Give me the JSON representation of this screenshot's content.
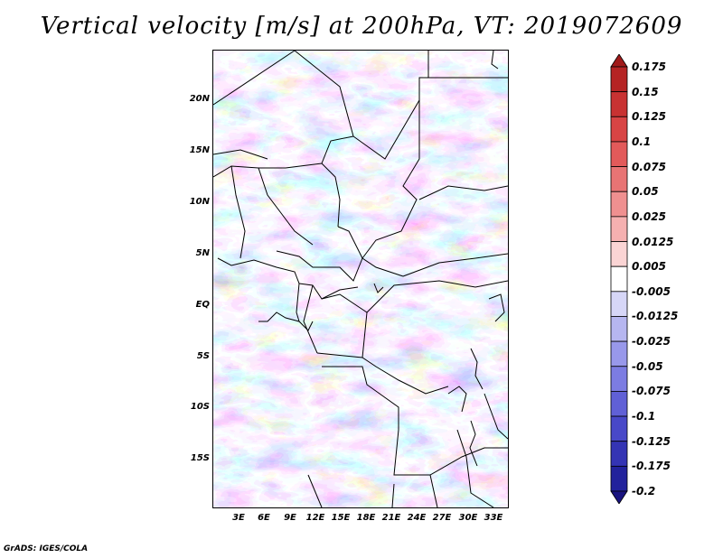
{
  "title": "Vertical velocity [m/s] at 200hPa, VT: 2019072609",
  "credit": "GrADS: IGES/COLA",
  "map": {
    "variable": "Vertical velocity",
    "units": "m/s",
    "level": "200hPa",
    "valid_time": "2019072609",
    "lat_labels": [
      "20N",
      "15N",
      "10N",
      "5N",
      "EQ",
      "5S",
      "10S",
      "15S"
    ],
    "lon_labels": [
      "3E",
      "6E",
      "9E",
      "12E",
      "15E",
      "18E",
      "21E",
      "24E",
      "27E",
      "30E",
      "33E"
    ]
  },
  "colorbar": {
    "labels": [
      "0.175",
      "0.15",
      "0.125",
      "0.1",
      "0.075",
      "0.05",
      "0.025",
      "0.0125",
      "0.005",
      "-0.005",
      "-0.0125",
      "-0.025",
      "-0.05",
      "-0.075",
      "-0.1",
      "-0.125",
      "-0.175",
      "-0.2"
    ],
    "colors": [
      "#a01a1a",
      "#b52424",
      "#c83232",
      "#d84444",
      "#e25a5a",
      "#e87474",
      "#ef9090",
      "#f5b0b0",
      "#fad4d4",
      "#ffffff",
      "#d6d6f7",
      "#b6b6f0",
      "#9898ea",
      "#7c7ce2",
      "#6060d6",
      "#4848c8",
      "#3434b4",
      "#22229c",
      "#1a1480"
    ]
  }
}
